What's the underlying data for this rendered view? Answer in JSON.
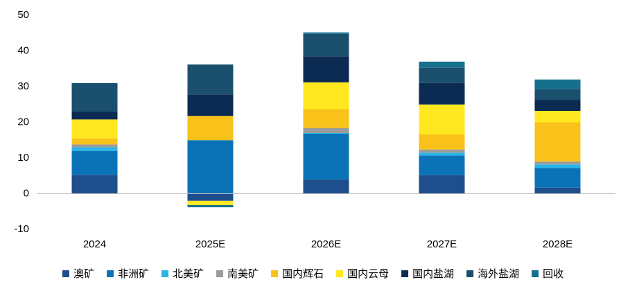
{
  "chart_data": {
    "type": "stacked_bar",
    "categories": [
      "2024",
      "2025E",
      "2026E",
      "2027E",
      "2028E"
    ],
    "series": [
      {
        "name": "澳矿",
        "color": "#1f4e8c",
        "values": [
          5.3,
          -2,
          4,
          5.2,
          1.7
        ]
      },
      {
        "name": "非洲矿",
        "color": "#0a73b8",
        "values": [
          6.7,
          15,
          12.8,
          5.5,
          5.5
        ]
      },
      {
        "name": "北美矿",
        "color": "#2bb5e6",
        "values": [
          1.0,
          0,
          0.2,
          0.8,
          1.0
        ]
      },
      {
        "name": "南美矿",
        "color": "#9b9b9b",
        "values": [
          0.8,
          0,
          1.4,
          0.9,
          0.8
        ]
      },
      {
        "name": "国内辉石",
        "color": "#f8c21a",
        "values": [
          1.7,
          6.8,
          5.3,
          4.2,
          11
        ]
      },
      {
        "name": "国内云母",
        "color": "#ffe81f",
        "values": [
          5.3,
          -1.2,
          7.5,
          8.4,
          3.2
        ]
      },
      {
        "name": "国内盐湖",
        "color": "#0c2b52",
        "values": [
          2.2,
          6,
          7.3,
          6,
          3.1
        ]
      },
      {
        "name": "海外盐湖",
        "color": "#1b4f6e",
        "values": [
          8.0,
          8.4,
          6.3,
          4.3,
          3
        ]
      },
      {
        "name": "回收",
        "color": "#176f8e",
        "values": [
          0,
          -0.6,
          0.4,
          1.7,
          2.7
        ]
      }
    ],
    "ylim": [
      -10,
      50
    ],
    "yticks": [
      -10,
      0,
      10,
      20,
      30,
      40,
      50
    ],
    "grid": false,
    "legend": "bottom"
  }
}
